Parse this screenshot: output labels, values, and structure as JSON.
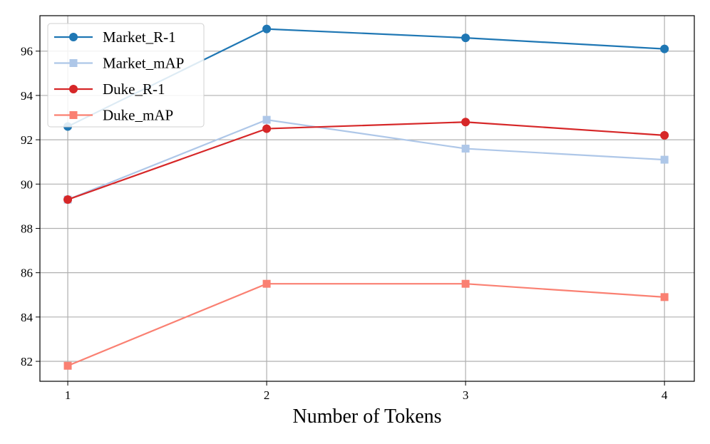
{
  "chart_data": {
    "type": "line",
    "title": "",
    "xlabel": "Number of Tokens",
    "ylabel": "",
    "x": [
      1,
      2,
      3,
      4
    ],
    "xticks": [
      "1",
      "2",
      "3",
      "4"
    ],
    "xlim": [
      0.86,
      4.15
    ],
    "ylim": [
      81.1,
      97.6
    ],
    "yticks": [
      "82",
      "84",
      "86",
      "88",
      "90",
      "92",
      "94",
      "96"
    ],
    "grid": true,
    "legend_position": "top-left",
    "series": [
      {
        "name": "Market_R-1",
        "values": [
          92.6,
          97.0,
          96.6,
          96.1
        ],
        "color": "#1f77b4",
        "marker": "circle"
      },
      {
        "name": "Market_mAP",
        "values": [
          89.3,
          92.9,
          91.6,
          91.1
        ],
        "color": "#aec7e8",
        "marker": "square"
      },
      {
        "name": "Duke_R-1",
        "values": [
          89.3,
          92.5,
          92.8,
          92.2
        ],
        "color": "#d62728",
        "marker": "circle"
      },
      {
        "name": "Duke_mAP",
        "values": [
          81.8,
          85.5,
          85.5,
          84.9
        ],
        "color": "#fa8072",
        "marker": "square"
      }
    ]
  }
}
